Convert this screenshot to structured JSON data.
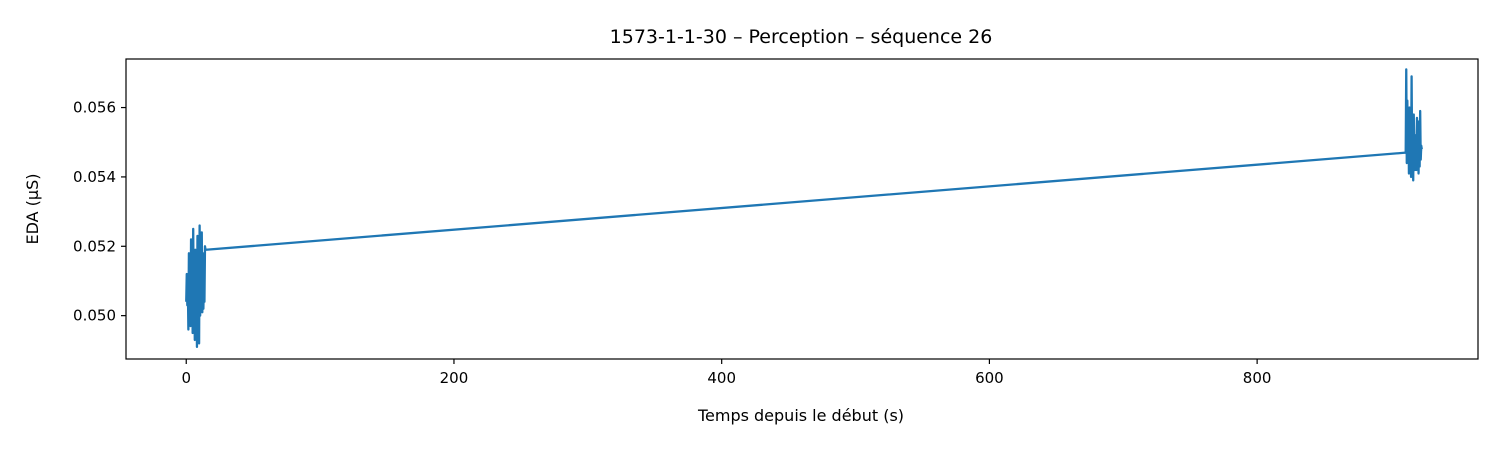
{
  "chart_data": {
    "type": "line",
    "title": "1573-1-1-30 – Perception – séquence 26",
    "xlabel": "Temps depuis le début (s)",
    "ylabel": "EDA (µS)",
    "xlim": [
      -45,
      965
    ],
    "ylim": [
      0.04875,
      0.0574
    ],
    "xticks": [
      0,
      200,
      400,
      600,
      800
    ],
    "xtick_labels": [
      "0",
      "200",
      "400",
      "600",
      "800"
    ],
    "yticks": [
      0.05,
      0.052,
      0.054,
      0.056
    ],
    "ytick_labels": [
      "0.050",
      "0.052",
      "0.054",
      "0.056"
    ],
    "grid": false,
    "legend": "none",
    "series": [
      {
        "color": "#1f77b4",
        "x": [
          0.0,
          0.4,
          0.8,
          1.2,
          1.6,
          2.0,
          2.4,
          2.8,
          3.2,
          3.6,
          4.0,
          4.4,
          4.8,
          5.2,
          5.6,
          6.0,
          6.4,
          6.8,
          7.2,
          7.6,
          8.0,
          8.4,
          8.8,
          9.2,
          9.6,
          10.0,
          10.4,
          10.8,
          11.2,
          11.6,
          12.0,
          12.4,
          12.8,
          13.2,
          13.6,
          14.0,
          14.4,
          14.8,
          911.0,
          911.4,
          911.8,
          912.2,
          912.6,
          913.0,
          913.4,
          913.8,
          914.2,
          914.6,
          915.0,
          915.4,
          915.8,
          916.2,
          916.6,
          917.0,
          917.4,
          917.8,
          918.2,
          918.6,
          919.0,
          919.4,
          919.8,
          920.2,
          920.6,
          921.0,
          921.4,
          921.8,
          922.2,
          922.6,
          923.0,
          923.4
        ],
        "y": [
          0.0504,
          0.0512,
          0.0503,
          0.0509,
          0.0496,
          0.0518,
          0.05,
          0.0514,
          0.0497,
          0.0522,
          0.0502,
          0.0511,
          0.0495,
          0.0525,
          0.0501,
          0.0508,
          0.0493,
          0.0519,
          0.0504,
          0.0513,
          0.0491,
          0.0523,
          0.0499,
          0.051,
          0.0492,
          0.0526,
          0.05,
          0.0515,
          0.0503,
          0.0524,
          0.0501,
          0.0518,
          0.0502,
          0.051,
          0.0504,
          0.052,
          0.0519,
          0.0519,
          0.0547,
          0.0571,
          0.0544,
          0.0562,
          0.0546,
          0.0559,
          0.0541,
          0.056,
          0.0549,
          0.0555,
          0.054,
          0.0569,
          0.0545,
          0.0553,
          0.0539,
          0.0558,
          0.0548,
          0.0542,
          0.0552,
          0.0547,
          0.0542,
          0.0557,
          0.0544,
          0.055,
          0.0541,
          0.0556,
          0.0543,
          0.0559,
          0.0545,
          0.0549,
          0.0548,
          0.0548
        ]
      }
    ]
  }
}
